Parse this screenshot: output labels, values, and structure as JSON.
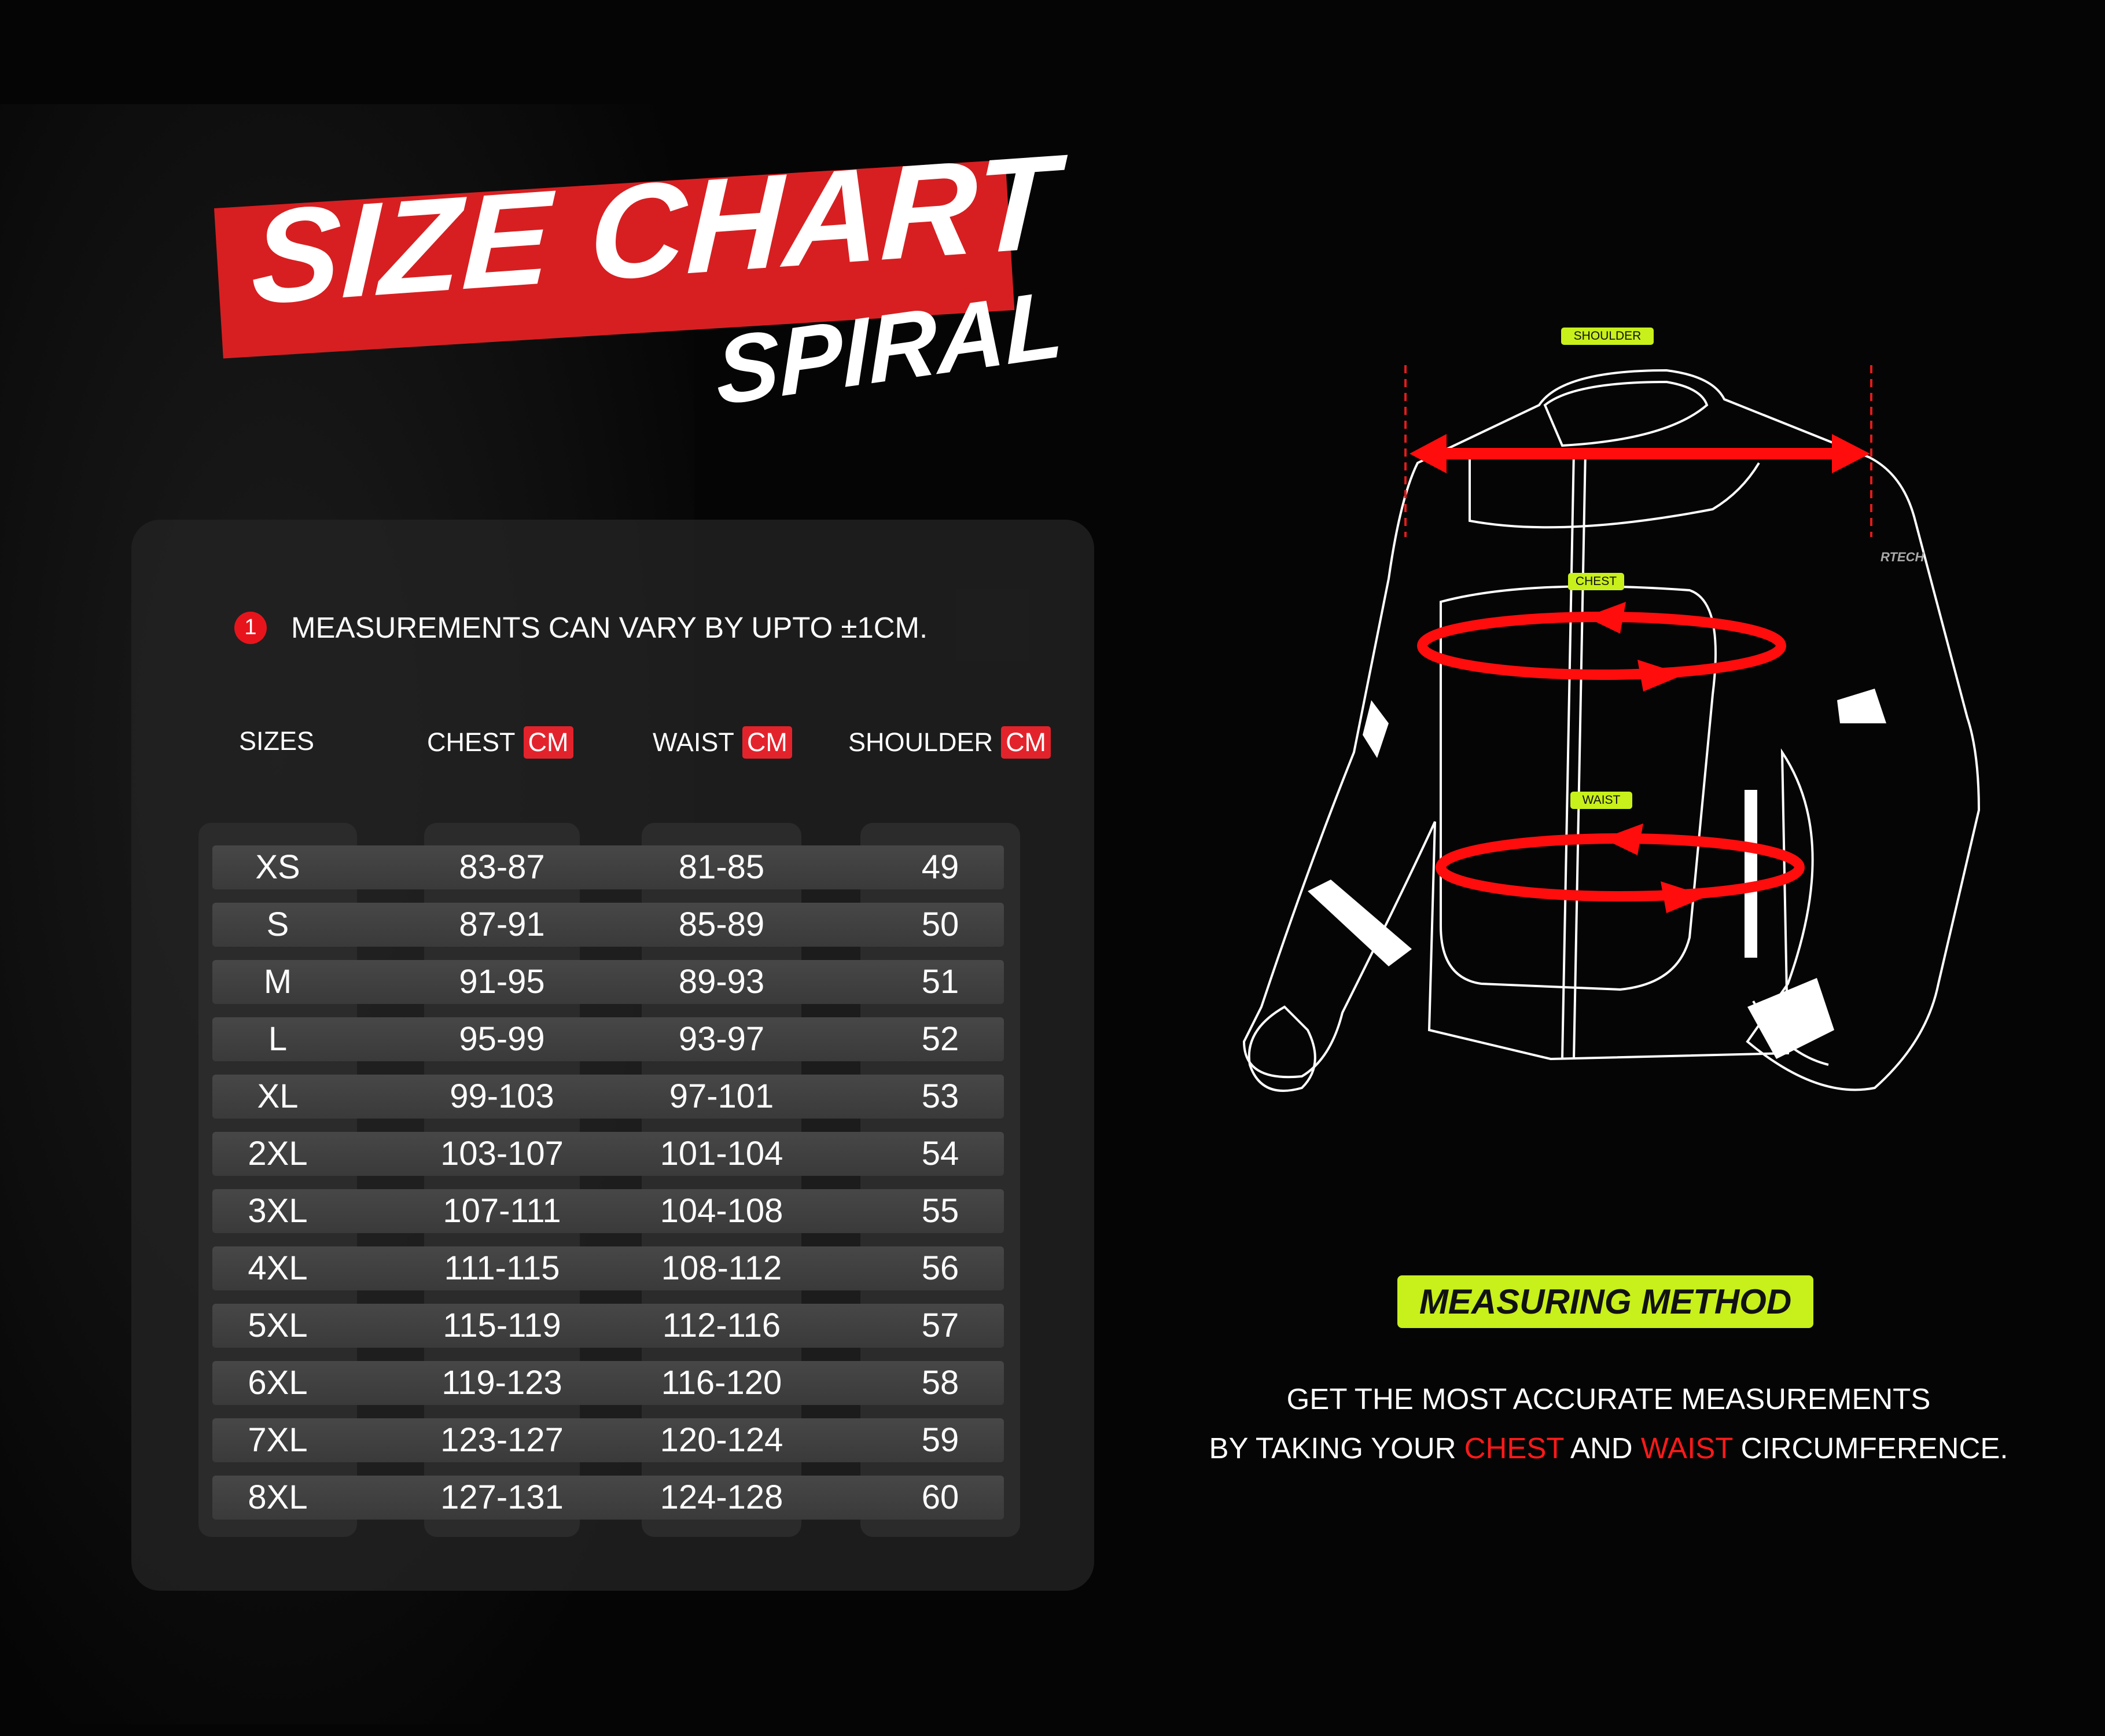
{
  "title": "SIZE CHART",
  "subtitle": "SPIRAL",
  "note": {
    "number": "1",
    "text": "MEASUREMENTS CAN VARY BY UPTO ±1CM."
  },
  "columns": [
    {
      "label": "SIZES",
      "unit": ""
    },
    {
      "label": "CHEST",
      "unit": "CM"
    },
    {
      "label": "WAIST",
      "unit": "CM"
    },
    {
      "label": "SHOULDER",
      "unit": "CM"
    }
  ],
  "rows": [
    [
      "XS",
      "83-87",
      "81-85",
      "49"
    ],
    [
      "S",
      "87-91",
      "85-89",
      "50"
    ],
    [
      "M",
      "91-95",
      "89-93",
      "51"
    ],
    [
      "L",
      "95-99",
      "93-97",
      "52"
    ],
    [
      "XL",
      "99-103",
      "97-101",
      "53"
    ],
    [
      "2XL",
      "103-107",
      "101-104",
      "54"
    ],
    [
      "3XL",
      "107-111",
      "104-108",
      "55"
    ],
    [
      "4XL",
      "111-115",
      "108-112",
      "56"
    ],
    [
      "5XL",
      "115-119",
      "112-116",
      "57"
    ],
    [
      "6XL",
      "119-123",
      "116-120",
      "58"
    ],
    [
      "7XL",
      "123-127",
      "120-124",
      "59"
    ],
    [
      "8XL",
      "127-131",
      "124-128",
      "60"
    ]
  ],
  "diagram": {
    "labels": {
      "shoulder": "SHOULDER",
      "chest": "CHEST",
      "waist": "WAIST"
    },
    "brand_mark": "RTECH"
  },
  "method": {
    "badge": "MEASURING METHOD",
    "line1": "GET THE MOST ACCURATE MEASUREMENTS",
    "line2_a": "BY TAKING YOUR ",
    "line2_chest": "CHEST",
    "line2_b": " AND ",
    "line2_waist": "WAIST",
    "line2_c": " CIRCUMFERENCE."
  },
  "colors": {
    "accent_red": "#e3232c",
    "highlight_yellow": "#c8f01a",
    "background": "#050505"
  }
}
